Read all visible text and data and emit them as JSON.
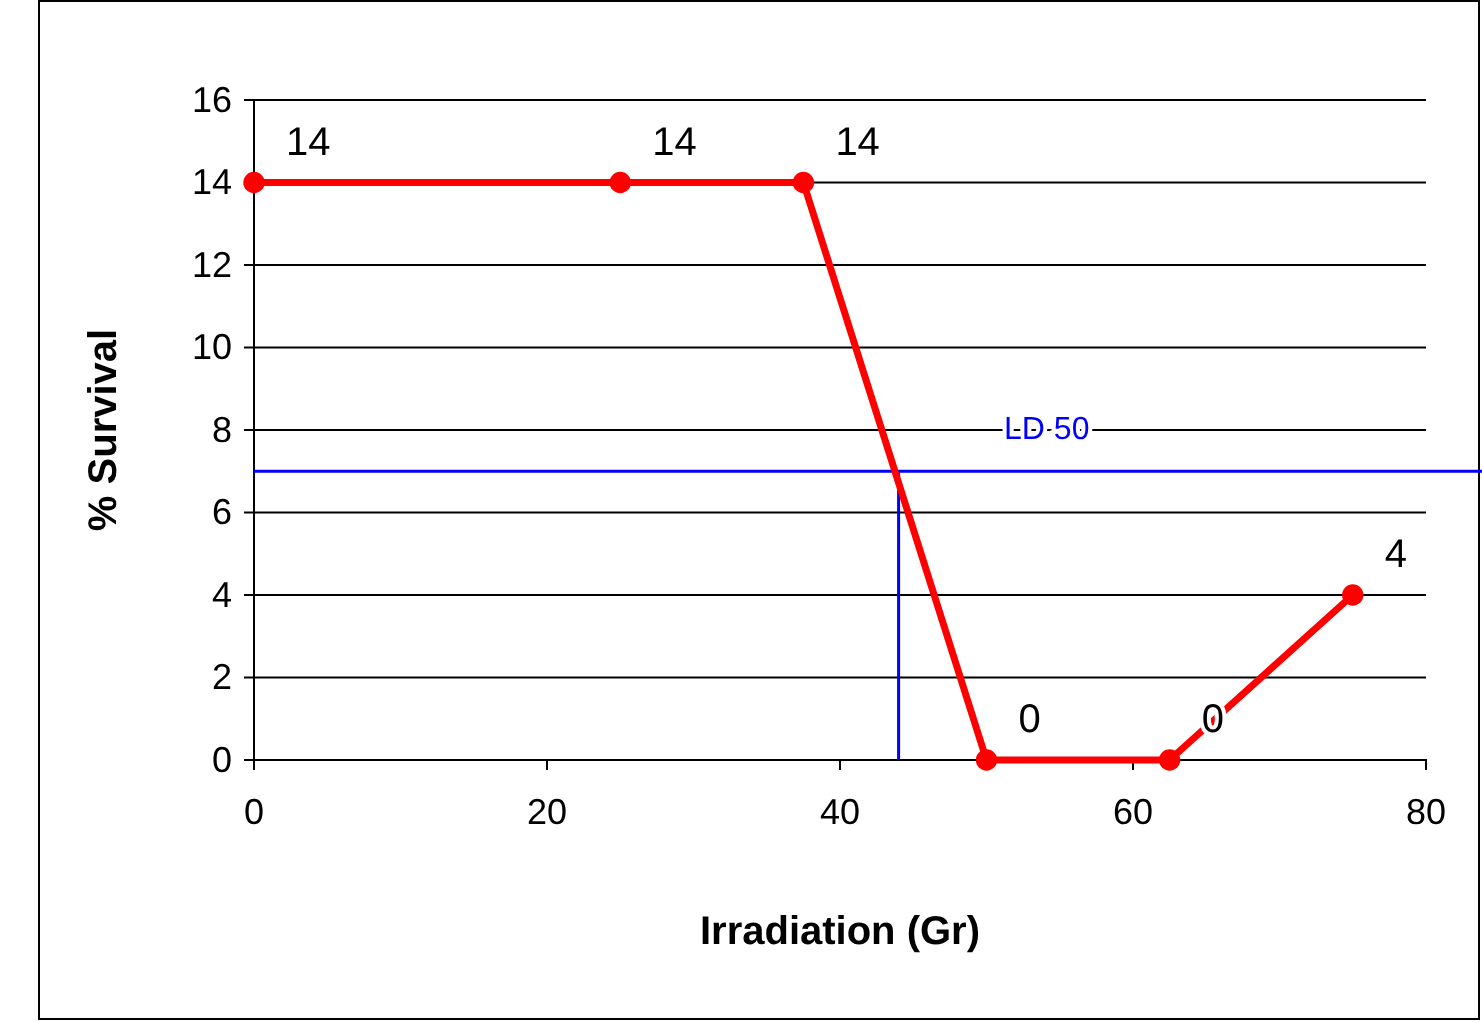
{
  "chart_data": {
    "type": "line",
    "xlabel": "Irradiation (Gr)",
    "ylabel": "% Survival",
    "x": [
      0,
      25,
      37.5,
      50,
      62.5,
      75
    ],
    "series": [
      {
        "color": "#ff0000",
        "values": [
          14,
          14,
          14,
          0,
          0,
          4
        ]
      }
    ],
    "xlim": [
      0,
      80
    ],
    "xticks": [
      0,
      20,
      40,
      60,
      80
    ],
    "ylim": [
      0,
      16
    ],
    "yticks": [
      0,
      2,
      4,
      6,
      8,
      10,
      12,
      14,
      16
    ],
    "grid": "y",
    "marker": "circle",
    "line_style": "solid",
    "data_labels": true,
    "ref_lines": [
      {
        "axis": "y",
        "value": 7,
        "label": "LD 50",
        "color": "#0000ff"
      },
      {
        "axis": "x",
        "value": 44,
        "color": "#0000ff"
      }
    ]
  }
}
